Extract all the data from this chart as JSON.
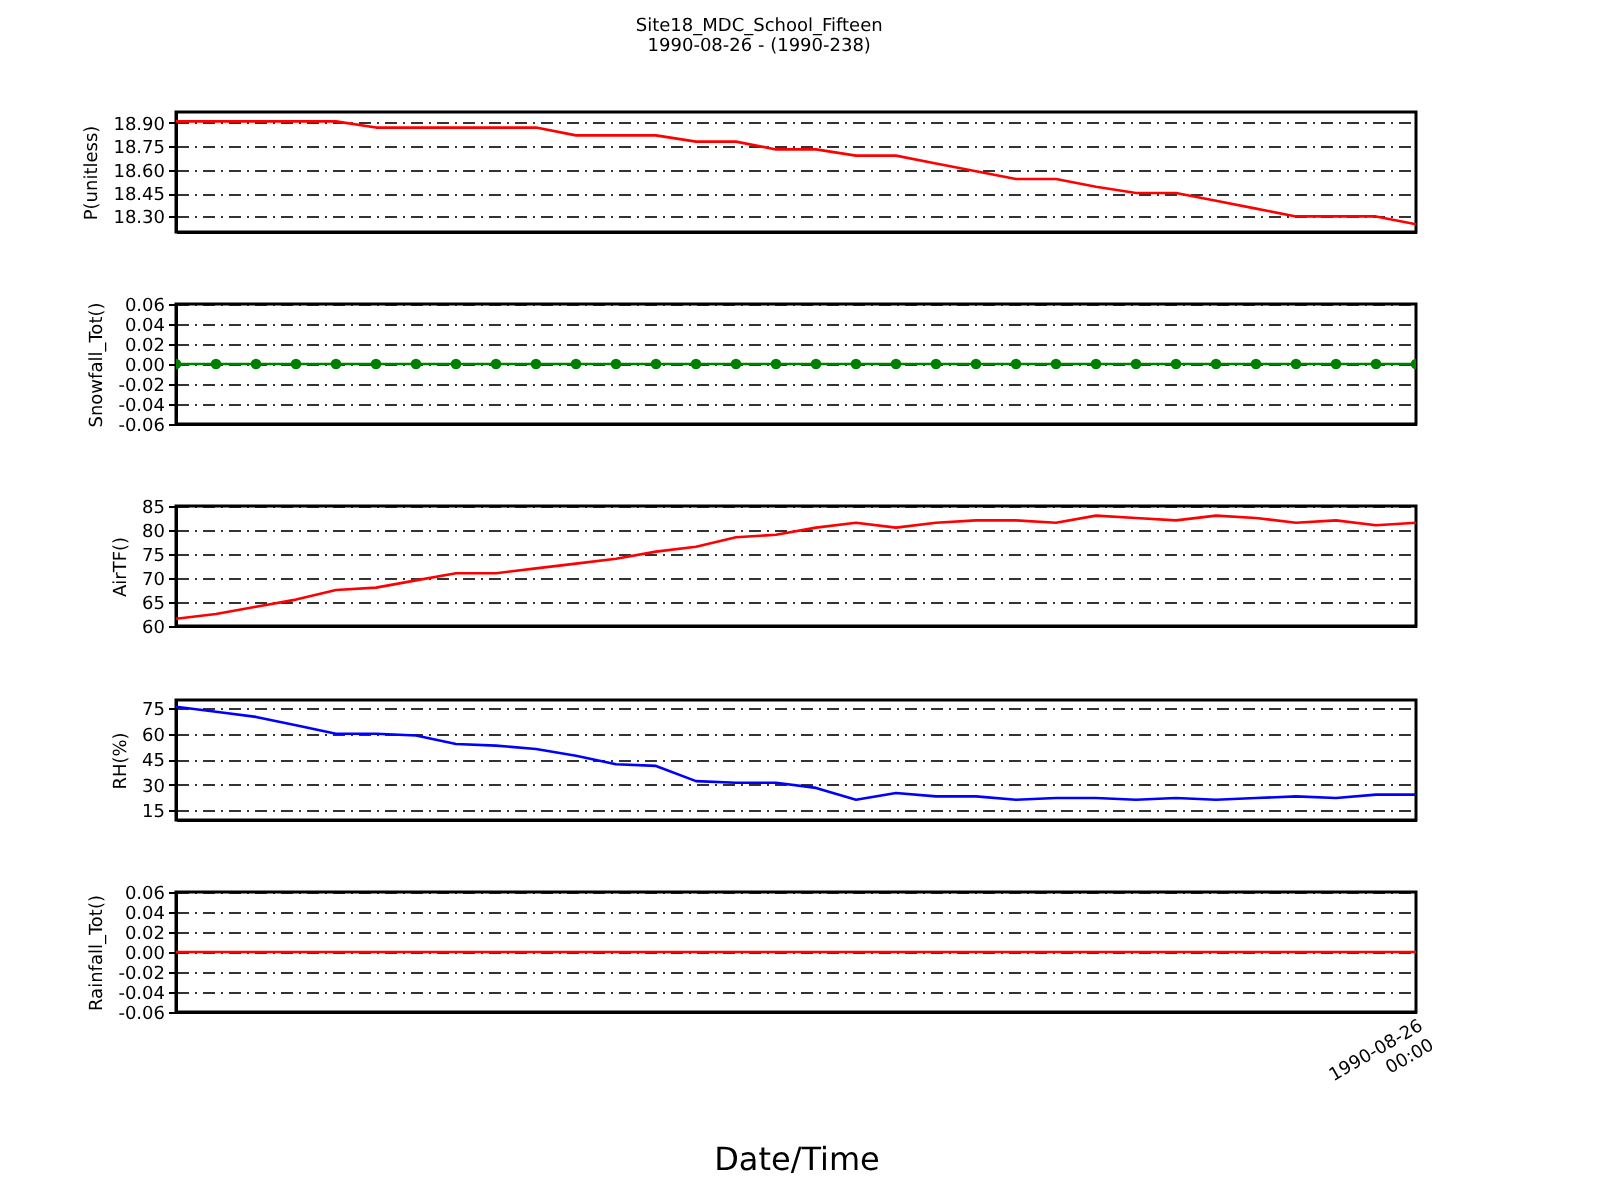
{
  "chart_data": [
    {
      "type": "line",
      "title": "Site18_MDC_School_Fifteen",
      "subtitle": "1990-08-26 - (1990-238)",
      "ylabel": "P(unitless)",
      "categories": [
        null,
        null,
        null,
        null,
        null,
        null,
        null,
        null,
        null,
        null,
        null,
        null,
        null,
        null,
        null,
        null,
        null,
        null,
        null,
        null,
        null,
        null,
        null,
        null,
        null,
        null,
        null,
        null,
        null,
        null,
        null,
        null
      ],
      "series": [
        {
          "color": "#ff0000",
          "values": [
            18.91,
            18.91,
            18.91,
            18.91,
            18.91,
            18.87,
            18.87,
            18.87,
            18.87,
            18.87,
            18.82,
            18.82,
            18.82,
            18.78,
            18.78,
            18.73,
            18.73,
            18.69,
            18.69,
            18.64,
            18.59,
            18.54,
            18.54,
            18.49,
            18.45,
            18.45,
            18.4,
            18.35,
            18.3,
            18.3,
            18.3,
            18.25
          ]
        }
      ],
      "ylim": [
        18.2,
        18.97
      ],
      "yticks": [
        {
          "value": 18.3,
          "label": "18.30"
        },
        {
          "value": 18.45,
          "label": "18.45"
        },
        {
          "value": 18.6,
          "label": "18.60"
        },
        {
          "value": 18.75,
          "label": "18.75"
        },
        {
          "value": 18.9,
          "label": "18.90"
        }
      ],
      "grid": "y",
      "tick_labels": "y"
    },
    {
      "type": "line",
      "ylabel": "Snowfall_Tot()",
      "marker": "circle",
      "categories": [
        null,
        null,
        null,
        null,
        null,
        null,
        null,
        null,
        null,
        null,
        null,
        null,
        null,
        null,
        null,
        null,
        null,
        null,
        null,
        null,
        null,
        null,
        null,
        null,
        null,
        null,
        null,
        null,
        null,
        null,
        null,
        null
      ],
      "series": [
        {
          "color": "#008000",
          "values": [
            0,
            0,
            0,
            0,
            0,
            0,
            0,
            0,
            0,
            0,
            0,
            0,
            0,
            0,
            0,
            0,
            0,
            0,
            0,
            0,
            0,
            0,
            0,
            0,
            0,
            0,
            0,
            0,
            0,
            0,
            0,
            0
          ]
        }
      ],
      "ylim": [
        -0.06,
        0.06
      ],
      "yticks": [
        {
          "value": -0.06,
          "label": "-0.06"
        },
        {
          "value": -0.04,
          "label": "-0.04"
        },
        {
          "value": -0.02,
          "label": "-0.02"
        },
        {
          "value": 0,
          "label": "0.00"
        },
        {
          "value": 0.02,
          "label": "0.02"
        },
        {
          "value": 0.04,
          "label": "0.04"
        },
        {
          "value": 0.06,
          "label": "0.06"
        }
      ],
      "grid": "y",
      "tick_labels": "y"
    },
    {
      "type": "line",
      "ylabel": "AirTF()",
      "categories": [
        null,
        null,
        null,
        null,
        null,
        null,
        null,
        null,
        null,
        null,
        null,
        null,
        null,
        null,
        null,
        null,
        null,
        null,
        null,
        null,
        null,
        null,
        null,
        null,
        null,
        null,
        null,
        null,
        null,
        null,
        null,
        null
      ],
      "series": [
        {
          "color": "#ff0000",
          "values": [
            61.5,
            62.5,
            64,
            65.5,
            67.5,
            68,
            69.5,
            71,
            71,
            72,
            73,
            74,
            75.5,
            76.5,
            78.5,
            79,
            80.5,
            81.5,
            80.5,
            81.5,
            82,
            82,
            81.5,
            83,
            82.5,
            82,
            83,
            82.5,
            81.5,
            82,
            81,
            81.5
          ]
        }
      ],
      "ylim": [
        60,
        85
      ],
      "yticks": [
        60,
        65,
        70,
        75,
        80,
        85
      ],
      "grid": "y",
      "tick_labels": "y"
    },
    {
      "type": "line",
      "ylabel": "RH(%)",
      "categories": [
        null,
        null,
        null,
        null,
        null,
        null,
        null,
        null,
        null,
        null,
        null,
        null,
        null,
        null,
        null,
        null,
        null,
        null,
        null,
        null,
        null,
        null,
        null,
        null,
        null,
        null,
        null,
        null,
        null,
        null,
        null,
        null
      ],
      "series": [
        {
          "color": "#0000ff",
          "values": [
            76,
            73,
            70,
            65,
            60,
            60,
            59,
            54,
            53,
            51,
            47,
            42,
            41,
            32,
            31,
            31,
            28,
            21,
            25,
            23,
            23,
            21,
            22,
            22,
            21,
            22,
            21,
            22,
            23,
            22,
            24,
            24
          ]
        }
      ],
      "ylim": [
        9,
        80
      ],
      "yticks": [
        15,
        30,
        45,
        60,
        75
      ],
      "grid": "y",
      "tick_labels": "y"
    },
    {
      "type": "line",
      "ylabel": "Rainfall_Tot()",
      "xlabel": "Date/Time",
      "categories": [
        null,
        null,
        null,
        null,
        null,
        null,
        null,
        null,
        null,
        null,
        null,
        null,
        null,
        null,
        null,
        null,
        null,
        null,
        null,
        null,
        null,
        null,
        null,
        null,
        null,
        null,
        null,
        null,
        null,
        null,
        null,
        "1990-08-26 00:00"
      ],
      "series": [
        {
          "color": "#ff0000",
          "values": [
            0,
            0,
            0,
            0,
            0,
            0,
            0,
            0,
            0,
            0,
            0,
            0,
            0,
            0,
            0,
            0,
            0,
            0,
            0,
            0,
            0,
            0,
            0,
            0,
            0,
            0,
            0,
            0,
            0,
            0,
            0,
            0
          ]
        }
      ],
      "ylim": [
        -0.06,
        0.06
      ],
      "yticks": [
        {
          "value": -0.06,
          "label": "-0.06"
        },
        {
          "value": -0.04,
          "label": "-0.04"
        },
        {
          "value": -0.02,
          "label": "-0.02"
        },
        {
          "value": 0,
          "label": "0.00"
        },
        {
          "value": 0.02,
          "label": "0.02"
        },
        {
          "value": 0.04,
          "label": "0.04"
        },
        {
          "value": 0.06,
          "label": "0.06"
        }
      ],
      "grid": "y"
    }
  ]
}
